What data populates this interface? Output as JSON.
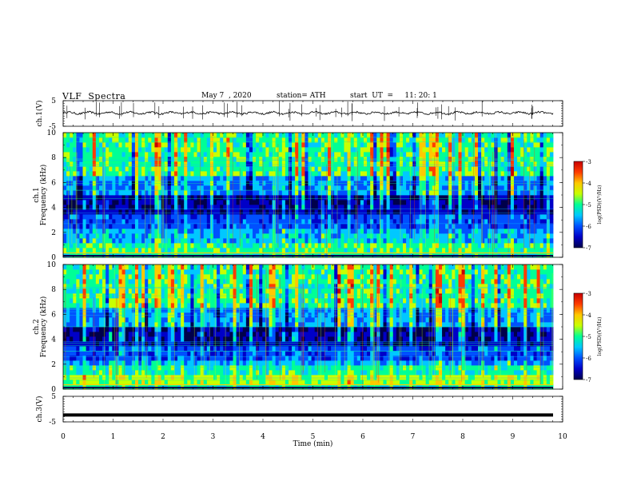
{
  "header": {
    "title": "VLF  Spectra",
    "date": "May 7  , 2020",
    "station": "station= ATH",
    "start": "start  UT  =     11: 20: 1"
  },
  "colors": {
    "colormap": [
      "#00004b",
      "#0000c8",
      "#0050ff",
      "#00c8ff",
      "#00ff96",
      "#c8ff00",
      "#ffc800",
      "#ff3c00",
      "#c80000",
      "#ffffff"
    ]
  },
  "chart_data": [
    {
      "type": "line",
      "name": "ch1-waveform",
      "ylabel": "ch.1(V)",
      "ylim": [
        -5,
        5
      ],
      "yticks": [
        "5",
        "-5"
      ],
      "xlim": [
        0,
        10
      ],
      "approx_level": 0.2,
      "spike_count": 40
    },
    {
      "type": "heatmap",
      "name": "ch1-spectrogram",
      "ylabel": "ch.1\nFrequency  (kHz)",
      "ylim": [
        0,
        10
      ],
      "yticks": [
        "0",
        "2",
        "4",
        "6",
        "8",
        "10"
      ],
      "xlim": [
        0,
        9.85
      ],
      "colorbar": {
        "label": "log(PSD)(V²/Hz)",
        "range": [
          -7,
          -3
        ],
        "ticks": [
          "-3",
          "-4",
          "-5",
          "-6",
          "-7"
        ]
      }
    },
    {
      "type": "heatmap",
      "name": "ch2-spectrogram",
      "ylabel": "ch.2\nFrequency  (kHz)",
      "ylim": [
        0,
        10
      ],
      "yticks": [
        "0",
        "2",
        "4",
        "6",
        "8",
        "10"
      ],
      "xlim": [
        0,
        9.85
      ],
      "colorbar": {
        "label": "log(PSD)(V²/Hz)",
        "range": [
          -7,
          -3
        ],
        "ticks": [
          "-3",
          "-4",
          "-5",
          "-6",
          "-7"
        ]
      }
    },
    {
      "type": "line",
      "name": "ch3-waveform",
      "ylabel": "ch.3(V)",
      "ylim": [
        -5,
        5
      ],
      "yticks": [
        "5",
        "-5"
      ],
      "xlim": [
        0,
        10
      ],
      "approx_level": -2.3
    }
  ],
  "xaxis": {
    "label": "Time  (min)",
    "range": [
      0,
      10
    ],
    "ticks": [
      "0",
      "1",
      "2",
      "3",
      "4",
      "5",
      "6",
      "7",
      "8",
      "9",
      "10"
    ]
  }
}
